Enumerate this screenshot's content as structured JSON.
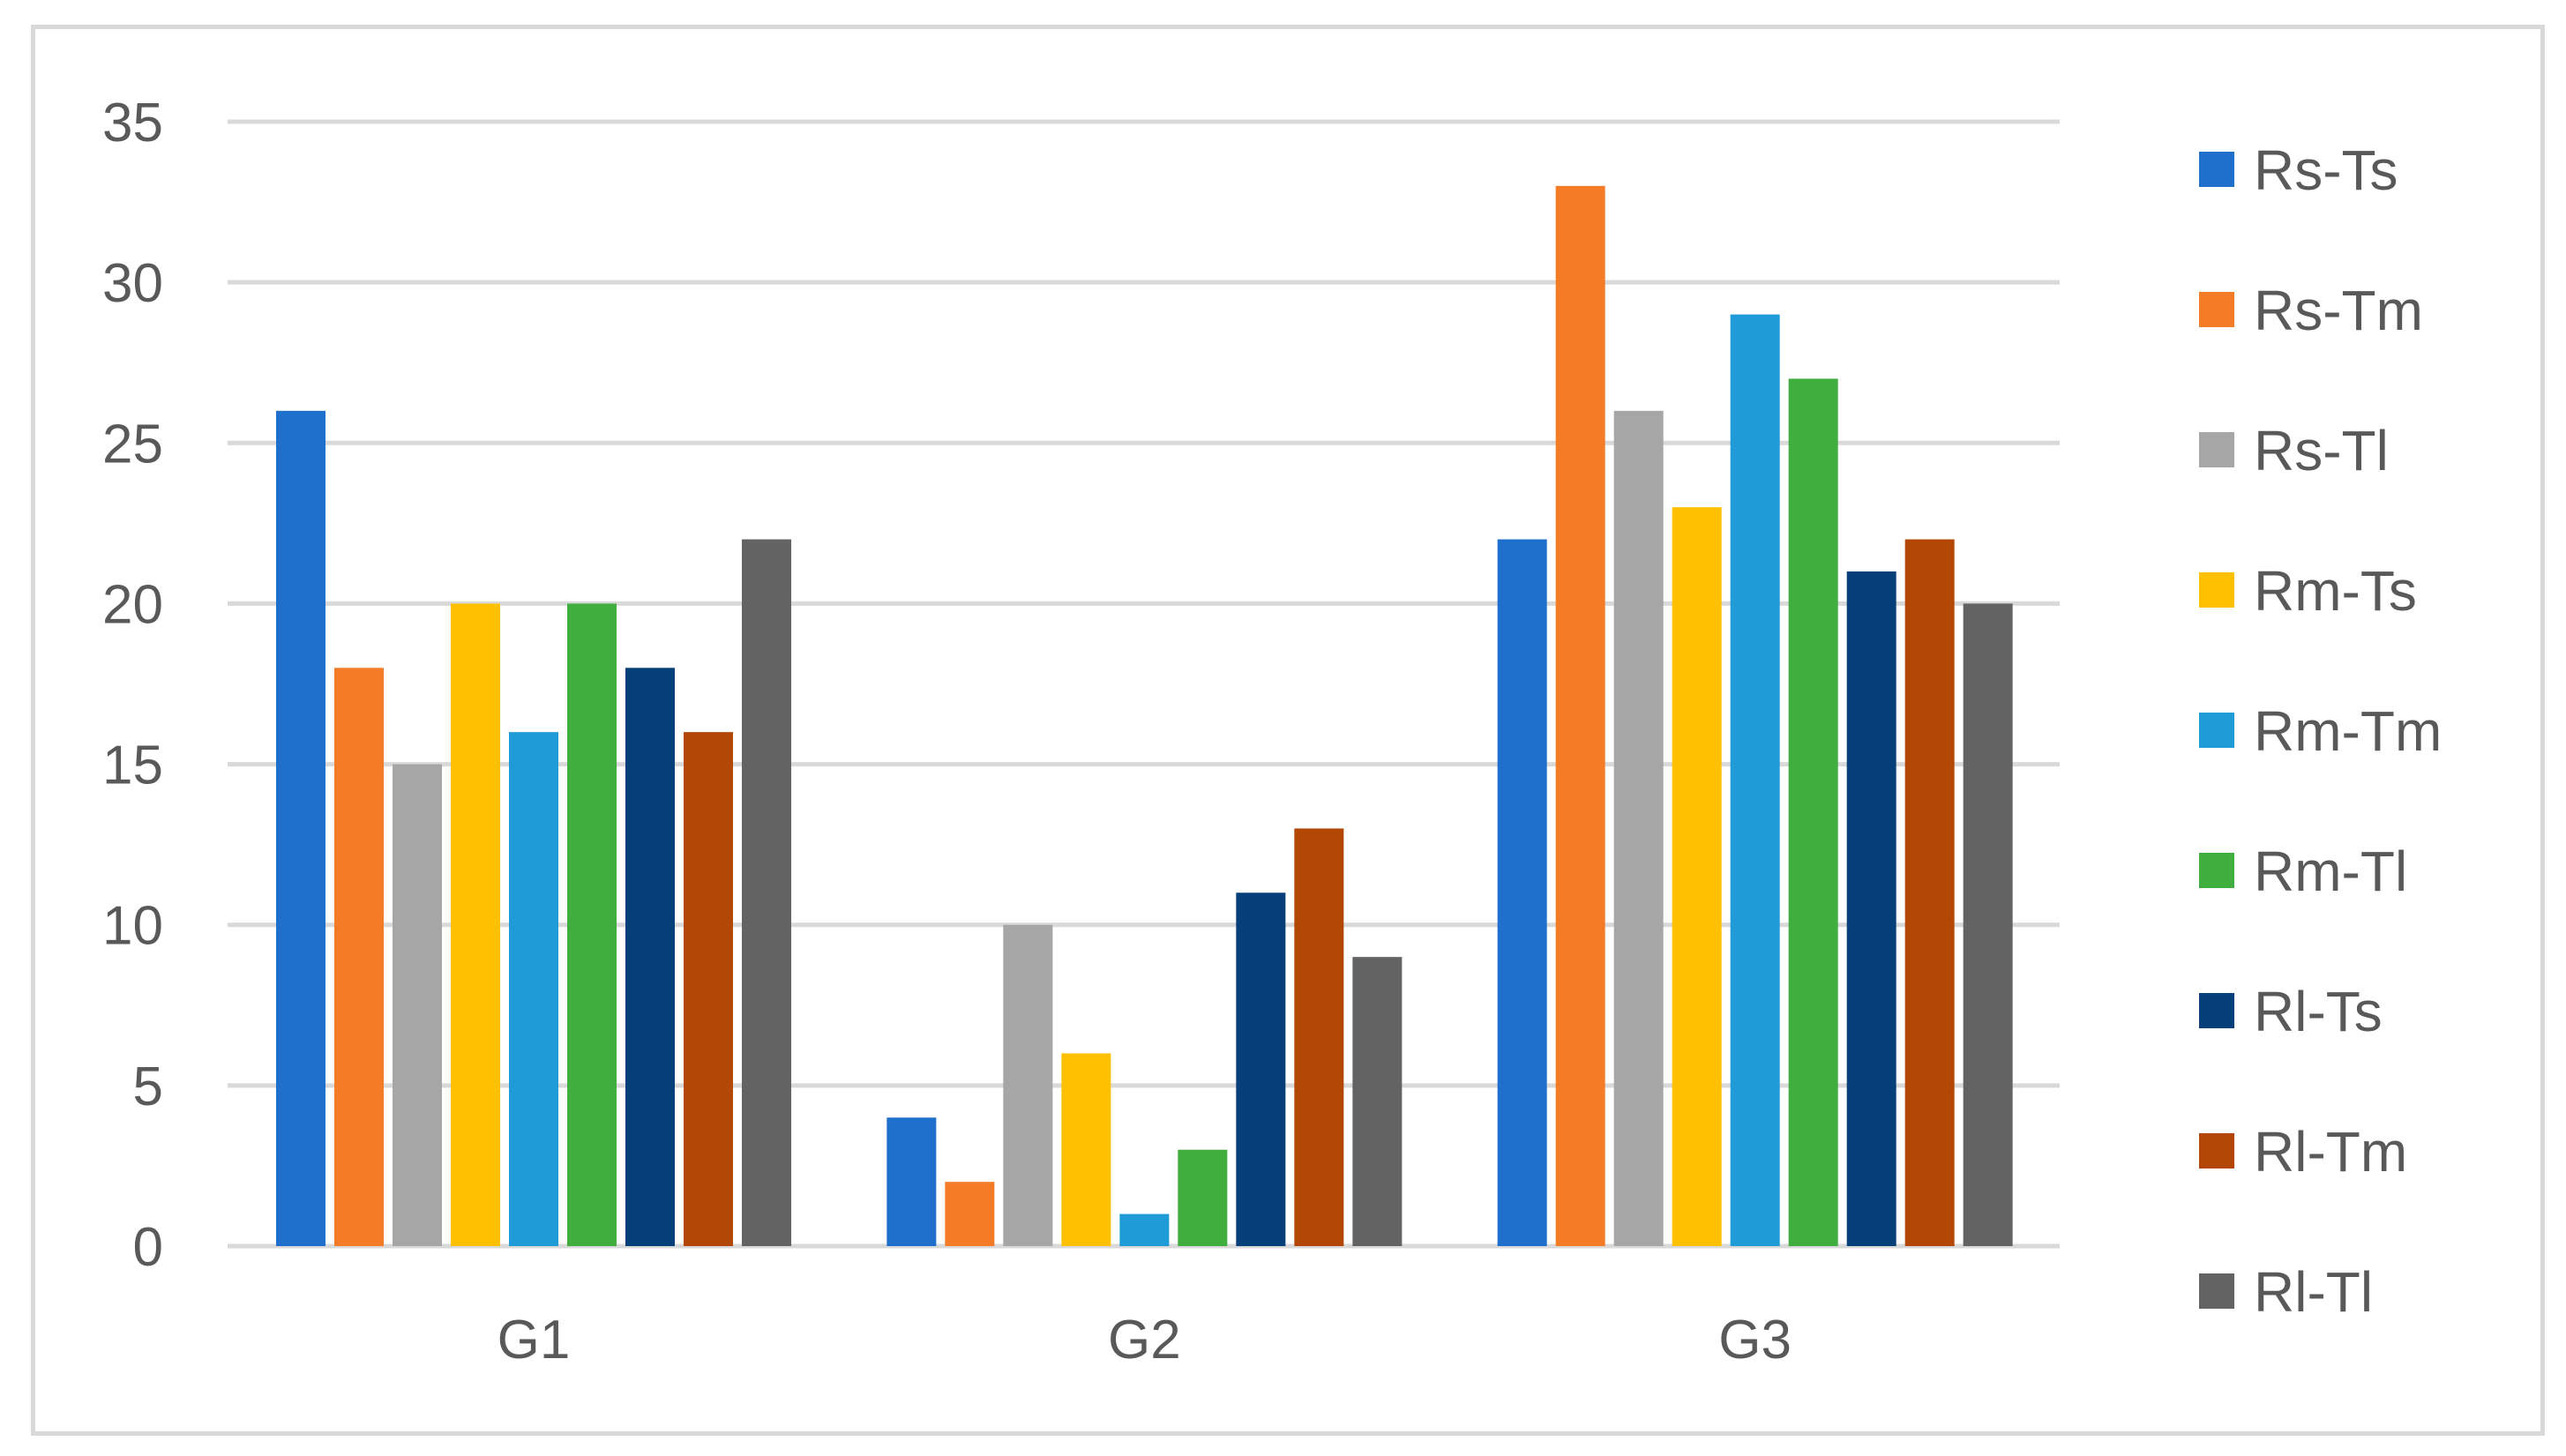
{
  "chart_data": {
    "type": "bar",
    "categories": [
      "G1",
      "G2",
      "G3"
    ],
    "series": [
      {
        "name": "Rs-Ts",
        "color": "#1f6fcc",
        "values": [
          26,
          4,
          22
        ]
      },
      {
        "name": "Rs-Tm",
        "color": "#f57c26",
        "values": [
          18,
          2,
          33
        ]
      },
      {
        "name": "Rs-Tl",
        "color": "#a6a6a6",
        "values": [
          15,
          10,
          26
        ]
      },
      {
        "name": "Rm-Ts",
        "color": "#ffc000",
        "values": [
          20,
          6,
          23
        ]
      },
      {
        "name": "Rm-Tm",
        "color": "#1f9bd8",
        "values": [
          16,
          1,
          29
        ]
      },
      {
        "name": "Rm-Tl",
        "color": "#3fae3f",
        "values": [
          20,
          3,
          27
        ]
      },
      {
        "name": "Rl-Ts",
        "color": "#063f79",
        "values": [
          18,
          11,
          21
        ]
      },
      {
        "name": "Rl-Tm",
        "color": "#b34706",
        "values": [
          16,
          13,
          22
        ]
      },
      {
        "name": "Rl-Tl",
        "color": "#636363",
        "values": [
          22,
          9,
          20
        ]
      }
    ],
    "y_ticks": [
      0,
      5,
      10,
      15,
      20,
      25,
      30,
      35
    ],
    "ylim": [
      0,
      35
    ],
    "grid": true,
    "legend_position": "right",
    "title": "",
    "xlabel": "",
    "ylabel": ""
  }
}
